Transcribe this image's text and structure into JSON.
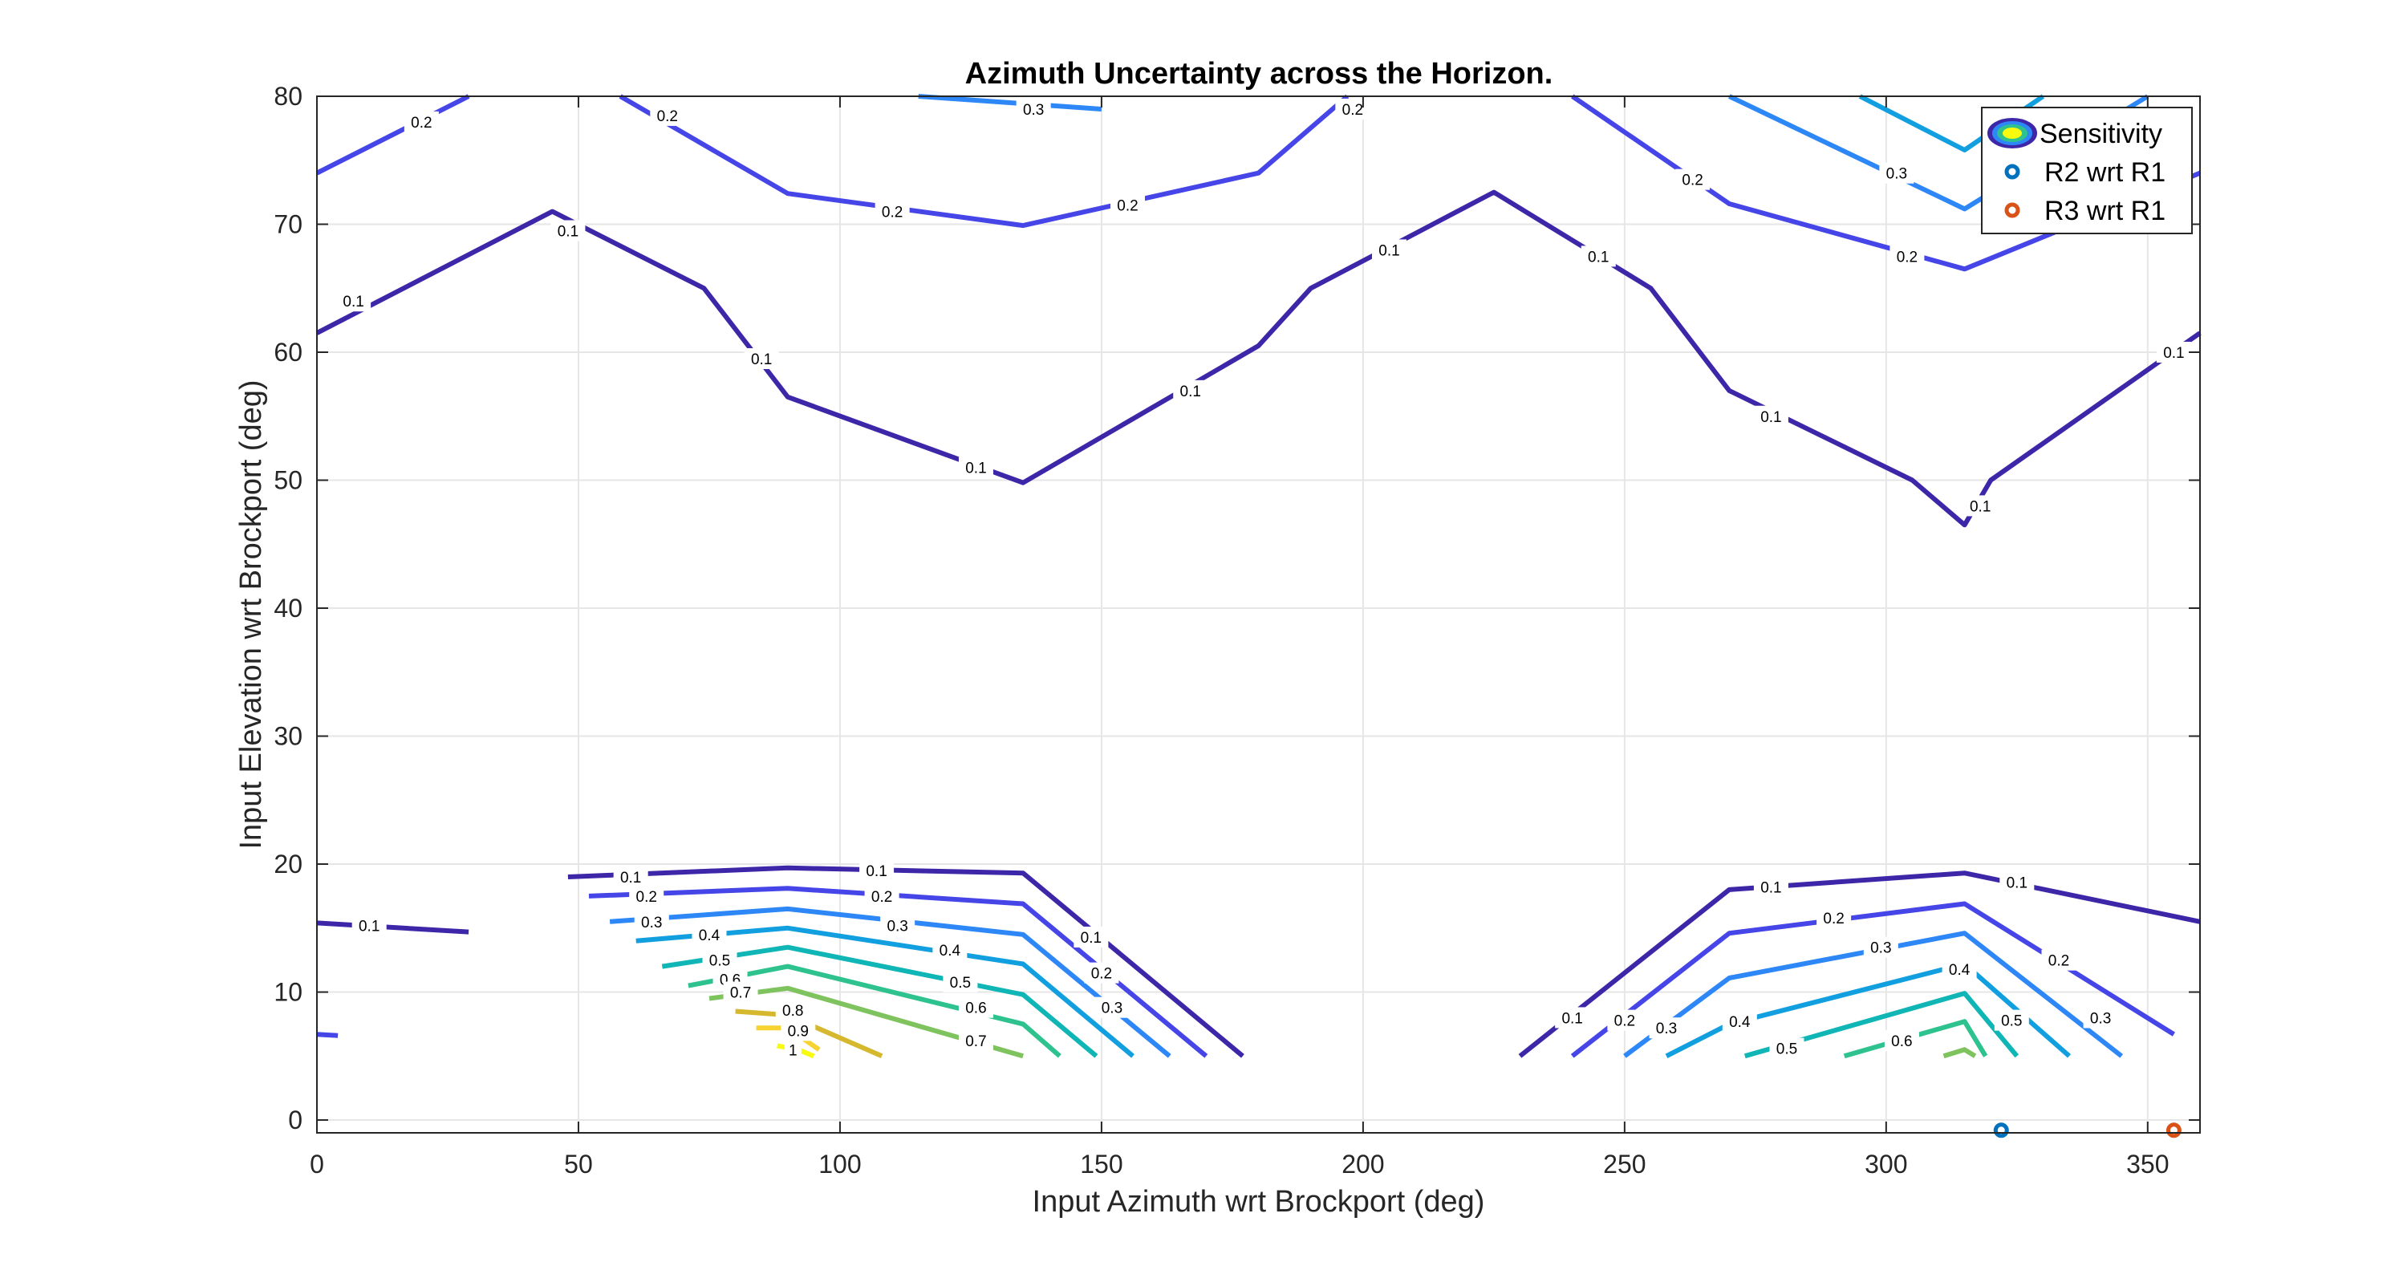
{
  "chart_data": {
    "type": "contour",
    "title": "Azimuth Uncertainty across the Horizon.",
    "xlabel": "Input Azimuth wrt Brockport (deg)",
    "ylabel": "Input Elevation wrt Brockport (deg)",
    "xlim": [
      0,
      360
    ],
    "ylim": [
      -1,
      80
    ],
    "xticks": [
      0,
      50,
      100,
      150,
      200,
      250,
      300,
      350
    ],
    "yticks": [
      0,
      10,
      20,
      30,
      40,
      50,
      60,
      70,
      80
    ],
    "grid": true,
    "legend": {
      "placement": "top-right",
      "entries": [
        {
          "label": "Sensitivity",
          "marker": "contour"
        },
        {
          "label": "R2 wrt R1",
          "marker": "circle",
          "color": "#0072BD"
        },
        {
          "label": "R3 wrt R1",
          "marker": "circle",
          "color": "#D95319"
        }
      ]
    },
    "contours": [
      {
        "level": 0.1,
        "label": "0.1",
        "color": "#3E26A8",
        "segments": [
          [
            [
              0,
              61.5
            ],
            [
              45,
              71
            ],
            [
              74,
              65
            ],
            [
              90,
              56.5
            ],
            [
              135,
              49.8
            ],
            [
              180,
              60.5
            ],
            [
              190,
              65
            ],
            [
              225,
              72.5
            ],
            [
              255,
              65
            ],
            [
              270,
              57
            ],
            [
              305,
              50
            ],
            [
              315,
              46.5
            ],
            [
              320,
              50
            ],
            [
              360,
              61.5
            ]
          ],
          [
            [
              48,
              19
            ],
            [
              90,
              19.7
            ],
            [
              135,
              19.3
            ],
            [
              177,
              5
            ]
          ],
          [
            [
              0,
              15.4
            ],
            [
              29,
              14.7
            ]
          ],
          [
            [
              230,
              5
            ],
            [
              270,
              18
            ],
            [
              315,
              19.3
            ],
            [
              360,
              15.5
            ]
          ]
        ]
      },
      {
        "level": 0.2,
        "label": "0.2",
        "color": "#4645E8",
        "segments": [
          [
            [
              0,
              74
            ],
            [
              29,
              80
            ]
          ],
          [
            [
              58,
              80
            ],
            [
              90,
              72.4
            ],
            [
              135,
              69.9
            ],
            [
              180,
              74
            ],
            [
              197,
              80
            ]
          ],
          [
            [
              240,
              80
            ],
            [
              270,
              71.6
            ],
            [
              315,
              66.5
            ],
            [
              360,
              74
            ]
          ],
          [
            [
              52,
              17.5
            ],
            [
              90,
              18.1
            ],
            [
              135,
              16.9
            ],
            [
              170,
              5
            ]
          ],
          [
            [
              0,
              6.7
            ],
            [
              4,
              6.6
            ]
          ],
          [
            [
              240,
              5
            ],
            [
              270,
              14.6
            ],
            [
              315,
              16.9
            ],
            [
              355,
              6.7
            ]
          ]
        ]
      },
      {
        "level": 0.3,
        "label": "0.3",
        "color": "#2E87F7",
        "segments": [
          [
            [
              115,
              80
            ],
            [
              150,
              79
            ]
          ],
          [
            [
              270,
              80
            ],
            [
              315,
              71.2
            ],
            [
              350,
              80
            ]
          ],
          [
            [
              56,
              15.5
            ],
            [
              90,
              16.5
            ],
            [
              135,
              14.5
            ],
            [
              163,
              5
            ]
          ],
          [
            [
              250,
              5
            ],
            [
              270,
              11.1
            ],
            [
              315,
              14.6
            ],
            [
              345,
              5
            ]
          ]
        ]
      },
      {
        "level": 0.4,
        "label": "0.4",
        "color": "#119FE0",
        "segments": [
          [
            [
              295,
              80
            ],
            [
              315,
              75.8
            ],
            [
              330,
              80
            ]
          ],
          [
            [
              61,
              14
            ],
            [
              90,
              15
            ],
            [
              135,
              12.2
            ],
            [
              156,
              5
            ]
          ],
          [
            [
              258,
              5
            ],
            [
              270,
              7.5
            ],
            [
              315,
              12.2
            ],
            [
              335,
              5
            ]
          ]
        ]
      },
      {
        "level": 0.5,
        "label": "0.5",
        "color": "#10B5B5",
        "segments": [
          [
            [
              66,
              12
            ],
            [
              90,
              13.5
            ],
            [
              135,
              9.8
            ],
            [
              149,
              5
            ]
          ],
          [
            [
              273,
              5
            ],
            [
              315,
              9.9
            ],
            [
              325,
              5
            ]
          ]
        ]
      },
      {
        "level": 0.6,
        "label": "0.6",
        "color": "#2EC28E",
        "segments": [
          [
            [
              71,
              10.5
            ],
            [
              90,
              12
            ],
            [
              135,
              7.5
            ],
            [
              142,
              5
            ]
          ],
          [
            [
              292,
              5
            ],
            [
              315,
              7.7
            ],
            [
              319,
              5
            ]
          ]
        ]
      },
      {
        "level": 0.7,
        "label": "0.7",
        "color": "#7FC35E",
        "segments": [
          [
            [
              75,
              9.5
            ],
            [
              90,
              10.3
            ],
            [
              135,
              5
            ]
          ],
          [
            [
              311,
              5
            ],
            [
              315,
              5.5
            ],
            [
              317,
              5
            ]
          ]
        ]
      },
      {
        "level": 0.8,
        "label": "0.8",
        "color": "#D5B82E",
        "segments": [
          [
            [
              80,
              8.5
            ],
            [
              90,
              8.2
            ],
            [
              108,
              5
            ]
          ]
        ]
      },
      {
        "level": 0.9,
        "label": "0.9",
        "color": "#F8D230",
        "segments": [
          [
            [
              84,
              7.2
            ],
            [
              90,
              7.2
            ],
            [
              96,
              5.5
            ]
          ]
        ]
      },
      {
        "level": 1,
        "label": "1",
        "color": "#F9FB0E",
        "segments": [
          [
            [
              88,
              5.8
            ],
            [
              92,
              5.5
            ],
            [
              95,
              5
            ]
          ]
        ]
      }
    ],
    "points": [
      {
        "name": "R2 wrt R1",
        "x": 322,
        "y": -0.8,
        "color": "#0072BD"
      },
      {
        "name": "R3 wrt R1",
        "x": 355,
        "y": -0.8,
        "color": "#D95319"
      }
    ],
    "contour_labels": [
      {
        "text": "0.2",
        "x": 20,
        "y": 78
      },
      {
        "text": "0.2",
        "x": 67,
        "y": 78.5
      },
      {
        "text": "0.3",
        "x": 137,
        "y": 79
      },
      {
        "text": "0.2",
        "x": 110,
        "y": 71
      },
      {
        "text": "0.2",
        "x": 155,
        "y": 71.5
      },
      {
        "text": "0.2",
        "x": 198,
        "y": 79
      },
      {
        "text": "0.2",
        "x": 263,
        "y": 73.5
      },
      {
        "text": "0.3",
        "x": 302,
        "y": 74
      },
      {
        "text": "0.2",
        "x": 304,
        "y": 67.5
      },
      {
        "text": "0.1",
        "x": 7,
        "y": 64
      },
      {
        "text": "0.1",
        "x": 48,
        "y": 69.5
      },
      {
        "text": "0.1",
        "x": 85,
        "y": 59.5
      },
      {
        "text": "0.1",
        "x": 126,
        "y": 51
      },
      {
        "text": "0.1",
        "x": 167,
        "y": 57
      },
      {
        "text": "0.1",
        "x": 205,
        "y": 68
      },
      {
        "text": "0.1",
        "x": 245,
        "y": 67.5
      },
      {
        "text": "0.1",
        "x": 278,
        "y": 55
      },
      {
        "text": "0.1",
        "x": 318,
        "y": 48
      },
      {
        "text": "0.1",
        "x": 355,
        "y": 60
      },
      {
        "text": "0.1",
        "x": 60,
        "y": 19
      },
      {
        "text": "0.1",
        "x": 107,
        "y": 19.5
      },
      {
        "text": "0.2",
        "x": 63,
        "y": 17.5
      },
      {
        "text": "0.2",
        "x": 108,
        "y": 17.5
      },
      {
        "text": "0.3",
        "x": 64,
        "y": 15.5
      },
      {
        "text": "0.3",
        "x": 111,
        "y": 15.2
      },
      {
        "text": "0.4",
        "x": 75,
        "y": 14.5
      },
      {
        "text": "0.4",
        "x": 121,
        "y": 13.3
      },
      {
        "text": "0.5",
        "x": 77,
        "y": 12.5
      },
      {
        "text": "0.5",
        "x": 123,
        "y": 10.8
      },
      {
        "text": "0.6",
        "x": 79,
        "y": 11
      },
      {
        "text": "0.6",
        "x": 126,
        "y": 8.8
      },
      {
        "text": "0.7",
        "x": 81,
        "y": 10
      },
      {
        "text": "0.7",
        "x": 126,
        "y": 6.2
      },
      {
        "text": "0.8",
        "x": 91,
        "y": 8.6
      },
      {
        "text": "0.9",
        "x": 92,
        "y": 7
      },
      {
        "text": "1",
        "x": 91,
        "y": 5.5
      },
      {
        "text": "0.1",
        "x": 148,
        "y": 14.3
      },
      {
        "text": "0.2",
        "x": 150,
        "y": 11.5
      },
      {
        "text": "0.3",
        "x": 152,
        "y": 8.8
      },
      {
        "text": "0.1",
        "x": 10,
        "y": 15.2
      },
      {
        "text": "0.1",
        "x": 240,
        "y": 8
      },
      {
        "text": "0.2",
        "x": 250,
        "y": 7.8
      },
      {
        "text": "0.3",
        "x": 258,
        "y": 7.2
      },
      {
        "text": "0.4",
        "x": 272,
        "y": 7.7
      },
      {
        "text": "0.5",
        "x": 281,
        "y": 5.6
      },
      {
        "text": "0.6",
        "x": 303,
        "y": 6.2
      },
      {
        "text": "0.4",
        "x": 314,
        "y": 11.8
      },
      {
        "text": "0.5",
        "x": 324,
        "y": 7.8
      },
      {
        "text": "0.3",
        "x": 341,
        "y": 8
      },
      {
        "text": "0.2",
        "x": 333,
        "y": 12.5
      },
      {
        "text": "0.1",
        "x": 325,
        "y": 18.6
      },
      {
        "text": "0.1",
        "x": 278,
        "y": 18.2
      },
      {
        "text": "0.2",
        "x": 290,
        "y": 15.8
      },
      {
        "text": "0.3",
        "x": 299,
        "y": 13.5
      }
    ]
  }
}
